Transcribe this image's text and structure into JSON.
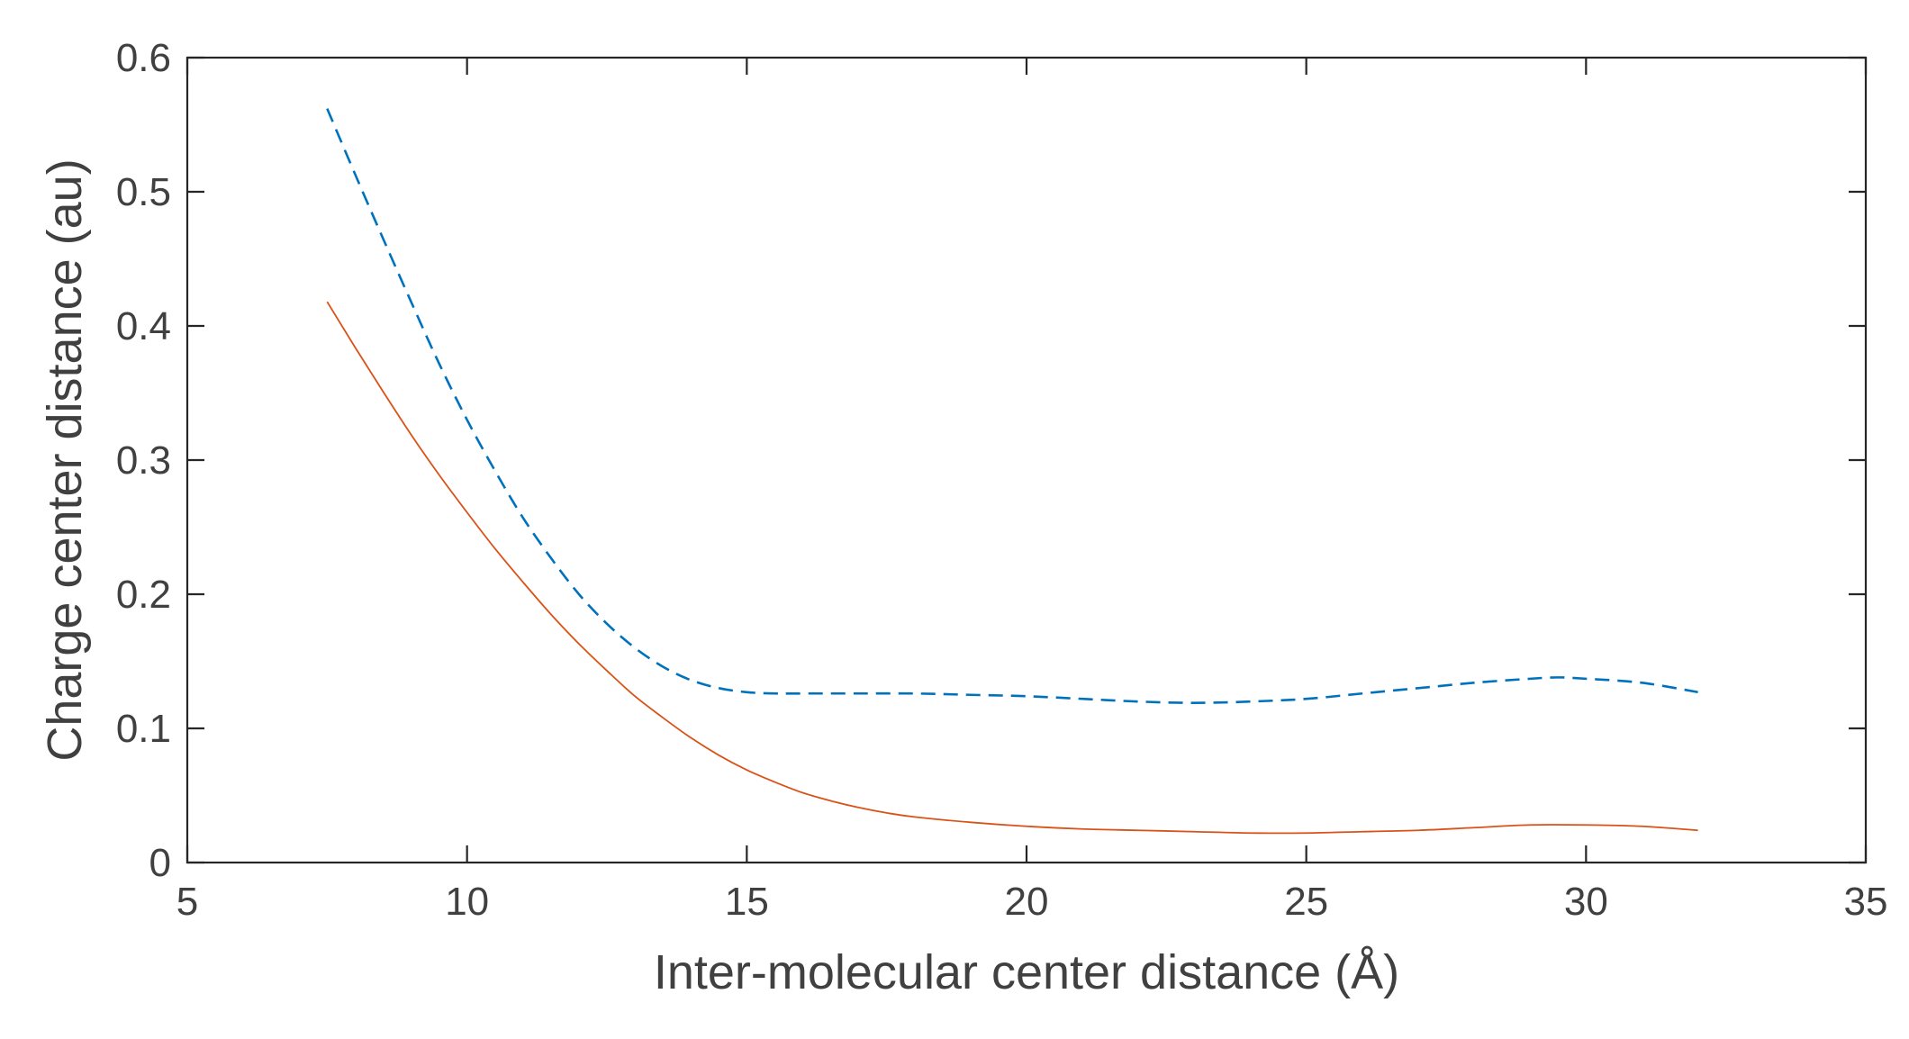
{
  "chart_data": {
    "type": "line",
    "title": "",
    "xlabel": "Inter-molecular center distance (Å)",
    "ylabel": "Charge center distance (au)",
    "xlim": [
      5,
      35
    ],
    "ylim": [
      0,
      0.6
    ],
    "xticks": [
      5,
      10,
      15,
      20,
      25,
      30,
      35
    ],
    "yticks": [
      0,
      0.1,
      0.2,
      0.3,
      0.4,
      0.5,
      0.6
    ],
    "xtick_labels": [
      "5",
      "10",
      "15",
      "20",
      "25",
      "30",
      "35"
    ],
    "ytick_labels": [
      "0",
      "0.1",
      "0.2",
      "0.3",
      "0.4",
      "0.5",
      "0.6"
    ],
    "grid": false,
    "legend": "none",
    "series": [
      {
        "name": "dashed-blue",
        "color": "#0072bd",
        "style": "dashed",
        "x": [
          7.5,
          8,
          8.5,
          9,
          9.5,
          10,
          10.5,
          11,
          11.5,
          12,
          12.5,
          13,
          13.5,
          14,
          14.5,
          15,
          15.5,
          16,
          17,
          18,
          19,
          20,
          21,
          22,
          23,
          24,
          25,
          26,
          27,
          28,
          29,
          29.5,
          30,
          31,
          32
        ],
        "y": [
          0.562,
          0.513,
          0.465,
          0.418,
          0.372,
          0.33,
          0.292,
          0.257,
          0.227,
          0.2,
          0.178,
          0.16,
          0.146,
          0.136,
          0.13,
          0.127,
          0.126,
          0.126,
          0.126,
          0.126,
          0.125,
          0.124,
          0.122,
          0.12,
          0.119,
          0.12,
          0.122,
          0.126,
          0.13,
          0.134,
          0.137,
          0.138,
          0.137,
          0.134,
          0.127
        ]
      },
      {
        "name": "solid-orange",
        "color": "#d95319",
        "style": "solid",
        "x": [
          7.5,
          8,
          8.5,
          9,
          9.5,
          10,
          10.5,
          11,
          11.5,
          12,
          12.5,
          13,
          13.5,
          14,
          14.5,
          15,
          15.5,
          16,
          16.5,
          17,
          17.5,
          18,
          19,
          20,
          21,
          22,
          23,
          24,
          25,
          26,
          27,
          28,
          29,
          30,
          31,
          32
        ],
        "y": [
          0.418,
          0.384,
          0.351,
          0.319,
          0.289,
          0.261,
          0.234,
          0.209,
          0.185,
          0.163,
          0.143,
          0.124,
          0.108,
          0.093,
          0.08,
          0.069,
          0.06,
          0.052,
          0.046,
          0.041,
          0.037,
          0.034,
          0.03,
          0.027,
          0.025,
          0.024,
          0.023,
          0.022,
          0.022,
          0.023,
          0.024,
          0.026,
          0.028,
          0.028,
          0.027,
          0.024
        ]
      }
    ]
  }
}
